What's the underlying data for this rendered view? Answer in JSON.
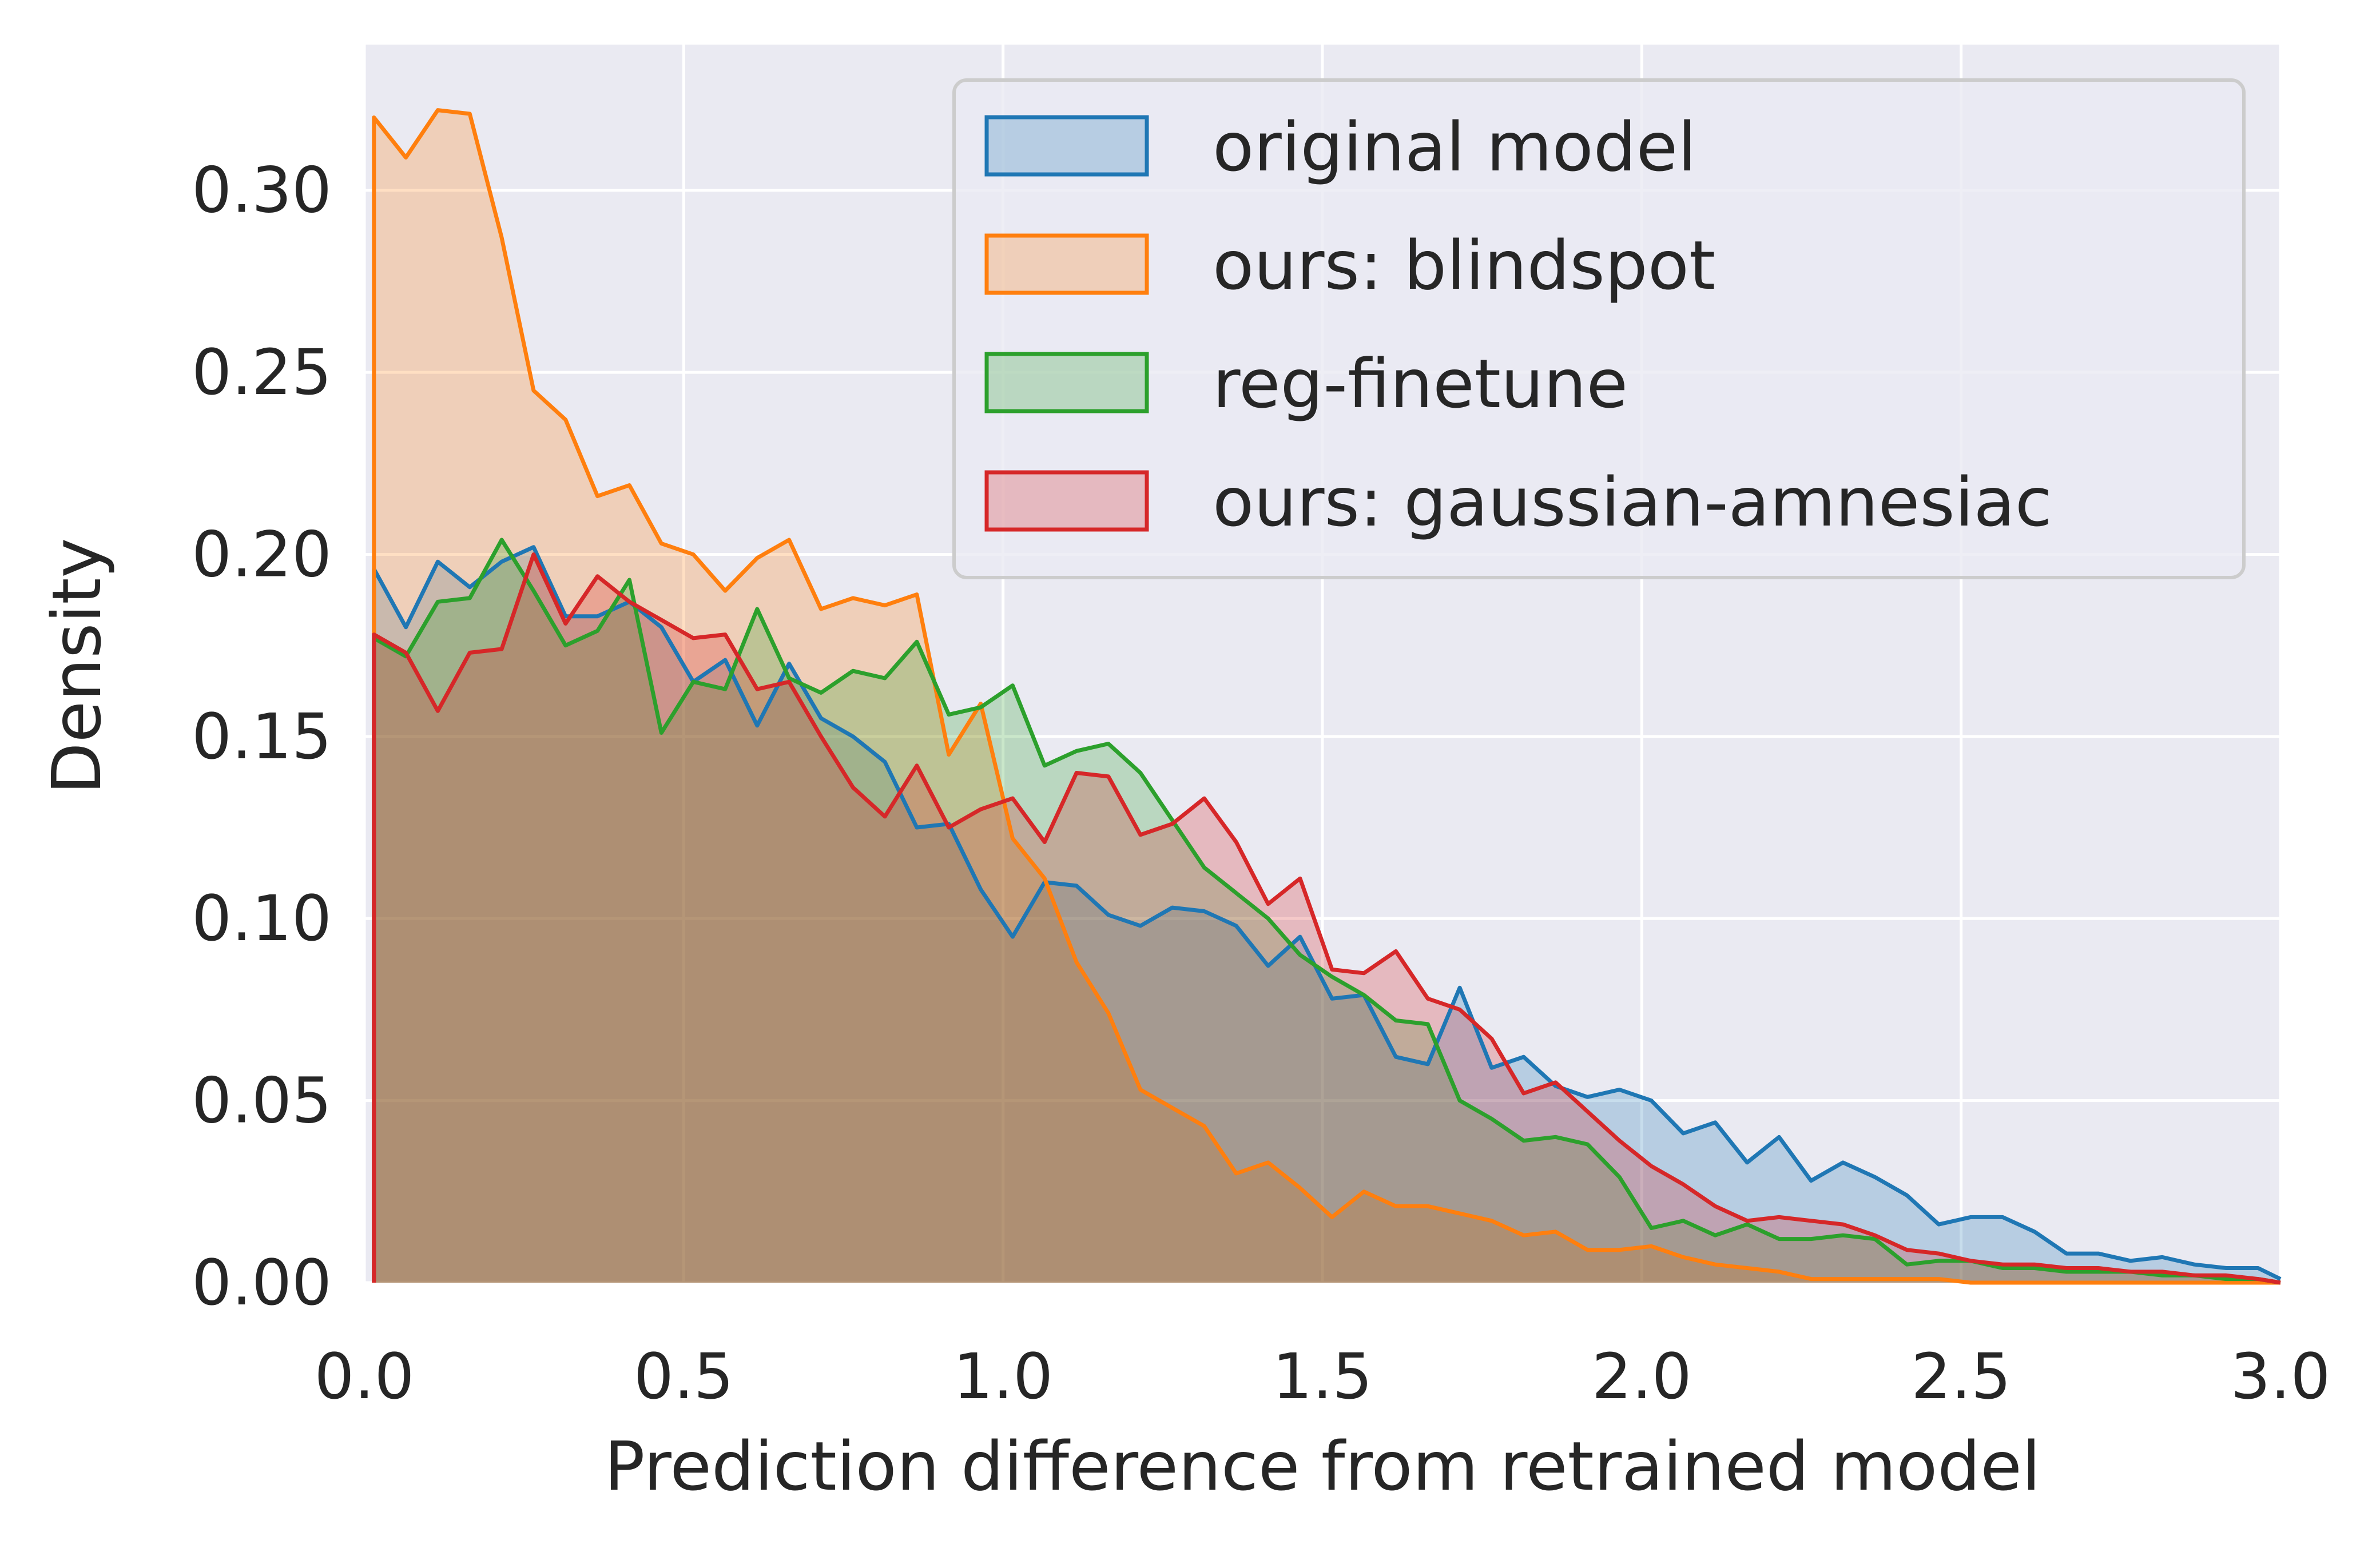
{
  "chart_data": {
    "type": "area",
    "title": "",
    "xlabel": "Prediction difference from retrained model",
    "ylabel": "Density",
    "xlim": [
      0,
      3.0
    ],
    "ylim": [
      0,
      0.34
    ],
    "xticks": [
      "0.0",
      "0.5",
      "1.0",
      "1.5",
      "2.0",
      "2.5",
      "3.0"
    ],
    "yticks": [
      "0.00",
      "0.05",
      "0.10",
      "0.15",
      "0.20",
      "0.25",
      "0.30"
    ],
    "grid": true,
    "legend_position": "top-right",
    "background": "#EAEAF2",
    "series": [
      {
        "name": "original model",
        "color": "#1F77B4",
        "x": [
          0.015,
          0.065,
          0.115,
          0.165,
          0.215,
          0.265,
          0.315,
          0.365,
          0.415,
          0.465,
          0.515,
          0.565,
          0.615,
          0.665,
          0.715,
          0.765,
          0.815,
          0.865,
          0.915,
          0.965,
          1.015,
          1.065,
          1.115,
          1.165,
          1.215,
          1.265,
          1.315,
          1.365,
          1.415,
          1.465,
          1.515,
          1.565,
          1.615,
          1.665,
          1.715,
          1.765,
          1.815,
          1.865,
          1.915,
          1.965,
          2.015,
          2.065,
          2.115,
          2.165,
          2.215,
          2.265,
          2.315,
          2.365,
          2.415,
          2.465,
          2.515,
          2.565,
          2.615,
          2.665,
          2.715,
          2.765,
          2.815,
          2.865,
          2.915,
          2.965,
          3.0
        ],
        "y": [
          0.196,
          0.18,
          0.198,
          0.191,
          0.198,
          0.202,
          0.183,
          0.183,
          0.187,
          0.18,
          0.165,
          0.171,
          0.153,
          0.17,
          0.155,
          0.15,
          0.143,
          0.125,
          0.126,
          0.108,
          0.095,
          0.11,
          0.109,
          0.101,
          0.098,
          0.103,
          0.102,
          0.098,
          0.087,
          0.095,
          0.078,
          0.079,
          0.062,
          0.06,
          0.081,
          0.059,
          0.062,
          0.054,
          0.051,
          0.053,
          0.05,
          0.041,
          0.044,
          0.033,
          0.04,
          0.028,
          0.033,
          0.029,
          0.024,
          0.016,
          0.018,
          0.018,
          0.014,
          0.008,
          0.008,
          0.006,
          0.007,
          0.005,
          0.004,
          0.004,
          0.001
        ]
      },
      {
        "name": "ours: blindspot",
        "color": "#FF7F0E",
        "x": [
          0.015,
          0.065,
          0.115,
          0.165,
          0.215,
          0.265,
          0.315,
          0.365,
          0.415,
          0.465,
          0.515,
          0.565,
          0.615,
          0.665,
          0.715,
          0.765,
          0.815,
          0.865,
          0.915,
          0.965,
          1.015,
          1.065,
          1.115,
          1.165,
          1.215,
          1.265,
          1.315,
          1.365,
          1.415,
          1.465,
          1.515,
          1.565,
          1.615,
          1.665,
          1.715,
          1.765,
          1.815,
          1.865,
          1.915,
          1.965,
          2.015,
          2.065,
          2.115,
          2.165,
          2.215,
          2.265,
          2.315,
          2.365,
          2.415,
          2.465,
          2.515,
          2.565,
          2.615,
          2.665,
          2.715,
          2.765,
          2.815,
          2.865,
          2.915,
          2.965,
          3.0
        ],
        "y": [
          0.32,
          0.309,
          0.322,
          0.321,
          0.287,
          0.245,
          0.237,
          0.216,
          0.219,
          0.203,
          0.2,
          0.19,
          0.199,
          0.204,
          0.185,
          0.188,
          0.186,
          0.189,
          0.145,
          0.159,
          0.122,
          0.111,
          0.088,
          0.074,
          0.053,
          0.048,
          0.043,
          0.03,
          0.033,
          0.026,
          0.018,
          0.025,
          0.021,
          0.021,
          0.019,
          0.017,
          0.013,
          0.014,
          0.009,
          0.009,
          0.01,
          0.007,
          0.005,
          0.004,
          0.003,
          0.001,
          0.001,
          0.001,
          0.001,
          0.001,
          0.0,
          0.0,
          0.0,
          0.0,
          0.0,
          0.0,
          0.0,
          0.0,
          0.0,
          0.0,
          0.0
        ]
      },
      {
        "name": "reg-finetune",
        "color": "#2CA02C",
        "x": [
          0.015,
          0.065,
          0.115,
          0.165,
          0.215,
          0.265,
          0.315,
          0.365,
          0.415,
          0.465,
          0.515,
          0.565,
          0.615,
          0.665,
          0.715,
          0.765,
          0.815,
          0.865,
          0.915,
          0.965,
          1.015,
          1.065,
          1.115,
          1.165,
          1.215,
          1.265,
          1.315,
          1.365,
          1.415,
          1.465,
          1.515,
          1.565,
          1.615,
          1.665,
          1.715,
          1.765,
          1.815,
          1.865,
          1.915,
          1.965,
          2.015,
          2.065,
          2.115,
          2.165,
          2.215,
          2.265,
          2.315,
          2.365,
          2.415,
          2.465,
          2.515,
          2.565,
          2.615,
          2.665,
          2.715,
          2.765,
          2.815,
          2.865,
          2.915,
          2.965,
          3.0
        ],
        "y": [
          0.177,
          0.172,
          0.187,
          0.188,
          0.204,
          0.19,
          0.175,
          0.179,
          0.193,
          0.151,
          0.165,
          0.163,
          0.185,
          0.166,
          0.162,
          0.168,
          0.166,
          0.176,
          0.156,
          0.158,
          0.164,
          0.142,
          0.146,
          0.148,
          0.14,
          0.127,
          0.114,
          0.107,
          0.1,
          0.09,
          0.084,
          0.079,
          0.072,
          0.071,
          0.05,
          0.045,
          0.039,
          0.04,
          0.038,
          0.029,
          0.015,
          0.017,
          0.013,
          0.016,
          0.012,
          0.012,
          0.013,
          0.012,
          0.005,
          0.006,
          0.006,
          0.004,
          0.004,
          0.003,
          0.003,
          0.003,
          0.002,
          0.002,
          0.001,
          0.001,
          0.0
        ]
      },
      {
        "name": "ours: gaussian-amnesiac",
        "color": "#D62728",
        "x": [
          0.015,
          0.065,
          0.115,
          0.165,
          0.215,
          0.265,
          0.315,
          0.365,
          0.415,
          0.465,
          0.515,
          0.565,
          0.615,
          0.665,
          0.715,
          0.765,
          0.815,
          0.865,
          0.915,
          0.965,
          1.015,
          1.065,
          1.115,
          1.165,
          1.215,
          1.265,
          1.315,
          1.365,
          1.415,
          1.465,
          1.515,
          1.565,
          1.615,
          1.665,
          1.715,
          1.765,
          1.815,
          1.865,
          1.915,
          1.965,
          2.015,
          2.065,
          2.115,
          2.165,
          2.215,
          2.265,
          2.315,
          2.365,
          2.415,
          2.465,
          2.515,
          2.565,
          2.615,
          2.665,
          2.715,
          2.765,
          2.815,
          2.865,
          2.915,
          2.965,
          3.0
        ],
        "y": [
          0.178,
          0.173,
          0.157,
          0.173,
          0.174,
          0.2,
          0.181,
          0.194,
          0.187,
          0.182,
          0.177,
          0.178,
          0.163,
          0.165,
          0.15,
          0.136,
          0.128,
          0.142,
          0.125,
          0.13,
          0.133,
          0.121,
          0.14,
          0.139,
          0.123,
          0.126,
          0.133,
          0.121,
          0.104,
          0.111,
          0.086,
          0.085,
          0.091,
          0.078,
          0.075,
          0.067,
          0.052,
          0.055,
          0.047,
          0.039,
          0.032,
          0.027,
          0.021,
          0.017,
          0.018,
          0.017,
          0.016,
          0.013,
          0.009,
          0.008,
          0.006,
          0.005,
          0.005,
          0.004,
          0.004,
          0.003,
          0.003,
          0.002,
          0.002,
          0.001,
          0.0
        ]
      }
    ]
  }
}
